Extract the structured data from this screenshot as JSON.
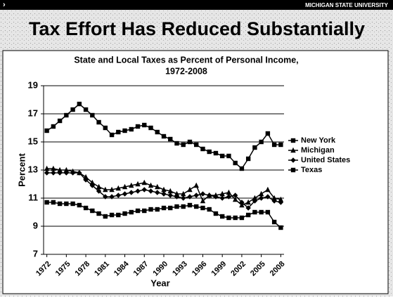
{
  "slide": {
    "brand": "MICHIGAN STATE UNIVERSITY",
    "title": "Tax Effort Has Reduced Substantially"
  },
  "chart_data": {
    "type": "line",
    "title": "State and Local Taxes as Percent of Personal Income,",
    "subtitle": "1972-2008",
    "x_label": "Year",
    "y_label": "Percent",
    "x": [
      1972,
      1973,
      1974,
      1975,
      1976,
      1977,
      1978,
      1979,
      1980,
      1981,
      1982,
      1983,
      1984,
      1985,
      1986,
      1987,
      1988,
      1989,
      1990,
      1991,
      1992,
      1993,
      1994,
      1995,
      1996,
      1997,
      1998,
      1999,
      2000,
      2001,
      2002,
      2003,
      2004,
      2005,
      2006,
      2007,
      2008
    ],
    "xlim": [
      1971.5,
      2008.5
    ],
    "xticks": [
      1972,
      1975,
      1978,
      1981,
      1984,
      1987,
      1990,
      1993,
      1996,
      1999,
      2002,
      2005,
      2008
    ],
    "ylim": [
      7,
      19
    ],
    "yticks": [
      7,
      9,
      11,
      13,
      15,
      17,
      19
    ],
    "grid": true,
    "legend": "right",
    "series": [
      {
        "name": "New York",
        "color": "#000000",
        "marker": "square",
        "values": [
          15.8,
          16.1,
          16.5,
          16.9,
          17.3,
          17.7,
          17.3,
          16.9,
          16.4,
          16.0,
          15.5,
          15.7,
          15.8,
          15.9,
          16.1,
          16.2,
          16.0,
          15.7,
          15.4,
          15.2,
          14.9,
          14.8,
          15.0,
          14.8,
          14.5,
          14.3,
          14.2,
          14.0,
          14.0,
          13.5,
          13.1,
          13.8,
          14.6,
          15.0,
          15.6,
          14.8,
          14.8
        ]
      },
      {
        "name": "Michigan",
        "color": "#000000",
        "marker": "triangle",
        "values": [
          13.1,
          13.1,
          13.0,
          13.0,
          12.9,
          12.8,
          12.5,
          12.1,
          11.8,
          11.6,
          11.6,
          11.7,
          11.8,
          11.9,
          12.0,
          12.1,
          11.9,
          11.8,
          11.6,
          11.5,
          11.3,
          11.3,
          11.6,
          11.9,
          10.8,
          11.2,
          11.2,
          11.3,
          11.4,
          10.9,
          10.5,
          10.7,
          11.0,
          11.3,
          11.6,
          11.0,
          10.9
        ]
      },
      {
        "name": "United States",
        "color": "#000000",
        "marker": "diamond",
        "values": [
          12.8,
          12.8,
          12.8,
          12.8,
          12.8,
          12.8,
          12.3,
          11.9,
          11.5,
          11.1,
          11.1,
          11.2,
          11.3,
          11.4,
          11.5,
          11.6,
          11.5,
          11.4,
          11.3,
          11.2,
          11.1,
          11.0,
          11.1,
          11.2,
          11.3,
          11.2,
          11.1,
          11.0,
          11.1,
          11.2,
          10.7,
          10.3,
          10.8,
          11.0,
          11.1,
          10.8,
          10.7
        ]
      },
      {
        "name": "Texas",
        "color": "#000000",
        "marker": "square",
        "values": [
          10.7,
          10.7,
          10.6,
          10.6,
          10.6,
          10.5,
          10.3,
          10.1,
          9.9,
          9.7,
          9.8,
          9.8,
          9.9,
          10.0,
          10.1,
          10.1,
          10.2,
          10.2,
          10.3,
          10.3,
          10.4,
          10.4,
          10.5,
          10.4,
          10.3,
          10.2,
          9.9,
          9.7,
          9.6,
          9.6,
          9.6,
          9.8,
          10.0,
          10.0,
          10.0,
          9.3,
          8.9
        ]
      }
    ]
  }
}
